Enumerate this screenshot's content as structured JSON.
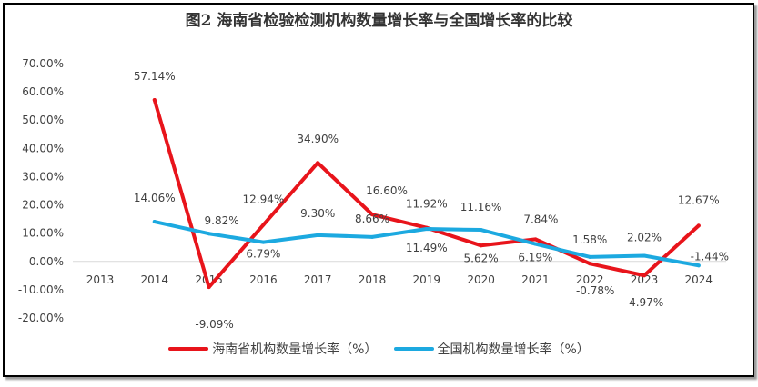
{
  "chart_data": {
    "type": "line",
    "title": "图2 海南省检验检测机构数量增长率与全国增长率的比较",
    "categories": [
      "2013",
      "2014",
      "2015",
      "2016",
      "2017",
      "2018",
      "2019",
      "2020",
      "2021",
      "2022",
      "2023",
      "2024"
    ],
    "ylim": [
      -20,
      70
    ],
    "yticks": [
      -20,
      -10,
      0,
      10,
      20,
      30,
      40,
      50,
      60,
      70
    ],
    "ytick_labels": [
      "-20.00%",
      "-10.00%",
      "0.00%",
      "10.00%",
      "20.00%",
      "30.00%",
      "40.00%",
      "50.00%",
      "60.00%",
      "70.00%"
    ],
    "grid": false,
    "legend": "bottom",
    "series": [
      {
        "name": "海南省机构数量增长率（%）",
        "color": "#E8141B",
        "values": [
          null,
          57.14,
          -9.09,
          12.94,
          34.9,
          16.6,
          11.92,
          5.62,
          7.84,
          -0.78,
          -4.97,
          12.67
        ],
        "labels": [
          "",
          "57.14%",
          "-9.09%",
          "12.94%",
          "34.90%",
          "16.60%",
          "11.92%",
          "5.62%",
          "7.84%",
          "-0.78%",
          "-4.97%",
          "12.67%"
        ]
      },
      {
        "name": "全国机构数量增长率（%）",
        "color": "#1CA9E0",
        "values": [
          null,
          14.06,
          9.82,
          6.79,
          9.3,
          8.66,
          11.49,
          11.16,
          6.19,
          1.58,
          2.02,
          -1.44
        ],
        "labels": [
          "",
          "14.06%",
          "9.82%",
          "6.79%",
          "9.30%",
          "8.66%",
          "11.49%",
          "11.16%",
          "6.19%",
          "1.58%",
          "2.02%",
          "-1.44%"
        ]
      }
    ]
  }
}
